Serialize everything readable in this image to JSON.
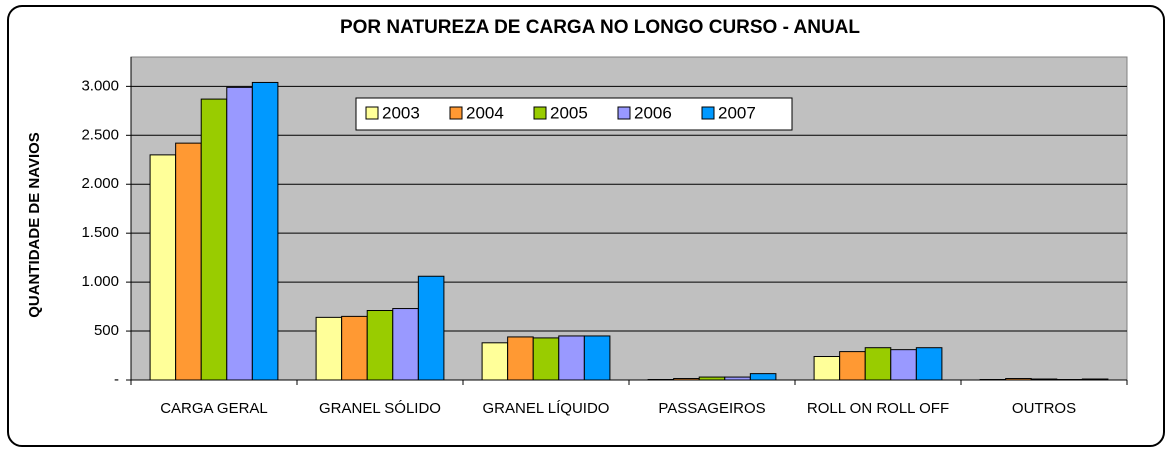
{
  "chart_data": {
    "type": "bar",
    "title": "POR NATUREZA DE CARGA NO LONGO CURSO - ANUAL",
    "y_label": "QUANTIDADE DE NAVIOS",
    "categories": [
      "CARGA GERAL",
      "GRANEL SÓLIDO",
      "GRANEL LÍQUIDO",
      "PASSAGEIROS",
      "ROLL ON ROLL OFF",
      "OUTROS"
    ],
    "series": [
      {
        "name": "2003",
        "color": "#ffff99",
        "values": [
          2300,
          640,
          380,
          5,
          240,
          5
        ]
      },
      {
        "name": "2004",
        "color": "#ff9933",
        "values": [
          2420,
          650,
          440,
          15,
          290,
          15
        ]
      },
      {
        "name": "2005",
        "color": "#99cc00",
        "values": [
          2870,
          710,
          430,
          30,
          330,
          10
        ]
      },
      {
        "name": "2006",
        "color": "#9999ff",
        "values": [
          2990,
          730,
          450,
          30,
          310,
          5
        ]
      },
      {
        "name": "2007",
        "color": "#0099ff",
        "values": [
          3040,
          1060,
          450,
          65,
          330,
          10
        ]
      }
    ],
    "ylim": [
      0,
      3300
    ],
    "yticks": [
      {
        "value": 0,
        "label": "-"
      },
      500,
      {
        "value": 1000,
        "label": "1.000"
      },
      {
        "value": 1500,
        "label": "1.500"
      },
      {
        "value": 2000,
        "label": "2.000"
      },
      {
        "value": 2500,
        "label": "2.500"
      },
      {
        "value": 3000,
        "label": "3.000"
      }
    ],
    "grid": true,
    "legend": "top",
    "plot_color": "#c0c0c0"
  }
}
